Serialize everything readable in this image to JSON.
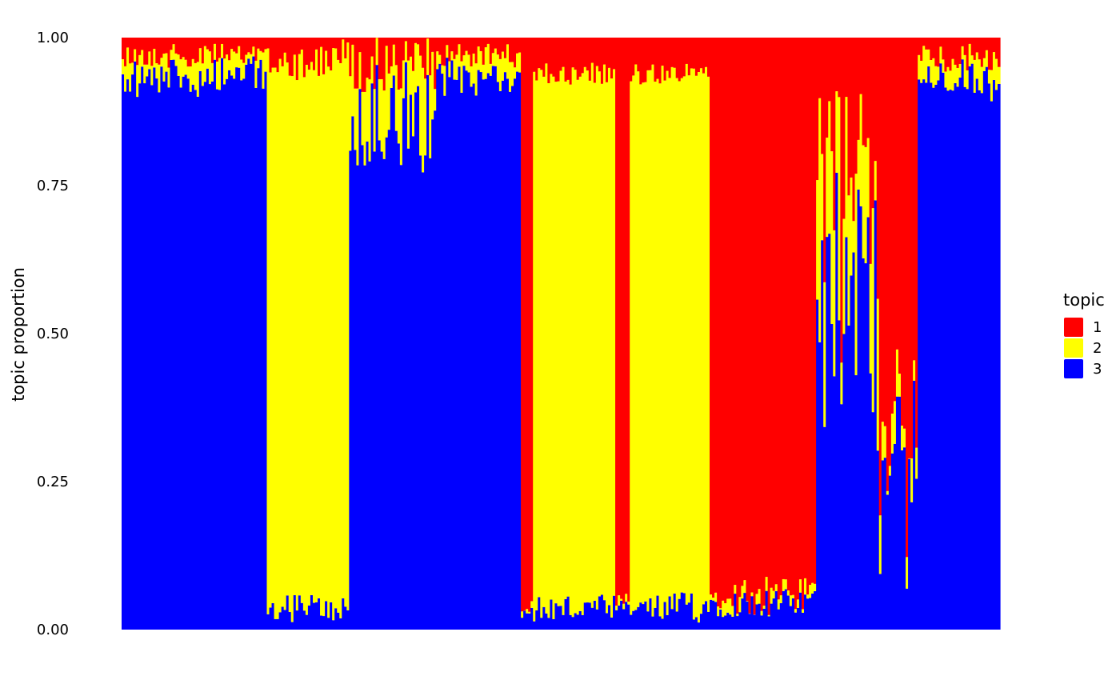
{
  "chart_data": {
    "type": "bar",
    "stacked": true,
    "title": "",
    "xlabel": "",
    "ylabel": "topic proportion",
    "ylim": [
      0,
      1
    ],
    "yticks": [
      "0.00",
      "0.25",
      "0.50",
      "0.75",
      "1.00"
    ],
    "legend": {
      "title": "topic",
      "position": "right",
      "entries": [
        {
          "label": "1",
          "color": "#ff0000"
        },
        {
          "label": "2",
          "color": "#ffff00"
        },
        {
          "label": "3",
          "color": "#0000ff"
        }
      ]
    },
    "grid": false,
    "segments_note": "individual samples ordered along x; proportions summarised per group block",
    "groups": [
      {
        "n": 60,
        "topic1": [
          0.01,
          0.05
        ],
        "topic2": [
          0.01,
          0.06
        ],
        "topic3": [
          0.86,
          0.97
        ]
      },
      {
        "n": 34,
        "topic1": [
          0.0,
          0.07
        ],
        "topic2": [
          0.85,
          0.96
        ],
        "topic3": [
          0.01,
          0.06
        ]
      },
      {
        "n": 36,
        "topic1": [
          0.0,
          0.1
        ],
        "topic2": [
          0.03,
          0.18
        ],
        "topic3": [
          0.72,
          0.95
        ]
      },
      {
        "n": 35,
        "topic1": [
          0.01,
          0.05
        ],
        "topic2": [
          0.01,
          0.06
        ],
        "topic3": [
          0.88,
          0.97
        ]
      },
      {
        "n": 5,
        "topic1": [
          0.94,
          0.98
        ],
        "topic2": [
          0.0,
          0.02
        ],
        "topic3": [
          0.02,
          0.04
        ]
      },
      {
        "n": 34,
        "topic1": [
          0.04,
          0.08
        ],
        "topic2": [
          0.85,
          0.92
        ],
        "topic3": [
          0.01,
          0.06
        ]
      },
      {
        "n": 6,
        "topic1": [
          0.94,
          0.98
        ],
        "topic2": [
          0.0,
          0.02
        ],
        "topic3": [
          0.02,
          0.05
        ]
      },
      {
        "n": 21,
        "topic1": [
          0.04,
          0.08
        ],
        "topic2": [
          0.85,
          0.92
        ],
        "topic3": [
          0.01,
          0.06
        ]
      },
      {
        "n": 12,
        "topic1": [
          0.04,
          0.08
        ],
        "topic2": [
          0.83,
          0.92
        ],
        "topic3": [
          0.01,
          0.07
        ]
      },
      {
        "n": 44,
        "topic1": [
          0.91,
          0.97
        ],
        "topic2": [
          0.0,
          0.03
        ],
        "topic3": [
          0.02,
          0.07
        ]
      },
      {
        "n": 26,
        "topic1": [
          0.04,
          0.3
        ],
        "topic2": [
          0.03,
          0.25
        ],
        "topic3": [
          0.15,
          0.85
        ]
      },
      {
        "n": 16,
        "topic1": [
          0.4,
          0.85
        ],
        "topic2": [
          0.0,
          0.1
        ],
        "topic3": [
          0.05,
          0.45
        ]
      },
      {
        "n": 34,
        "topic1": [
          0.01,
          0.06
        ],
        "topic2": [
          0.01,
          0.06
        ],
        "topic3": [
          0.9,
          0.97
        ]
      }
    ]
  }
}
